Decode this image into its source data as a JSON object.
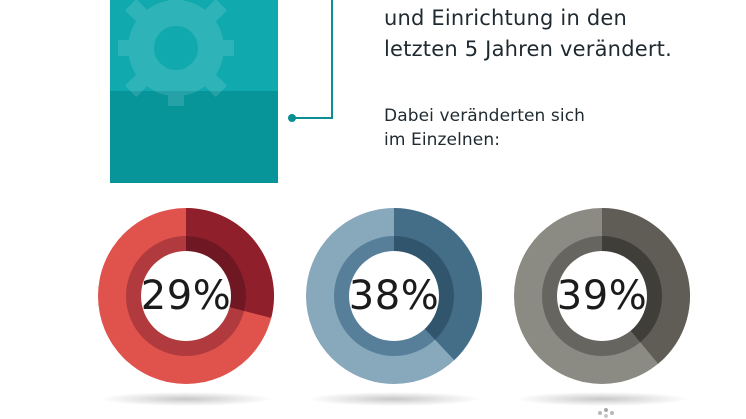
{
  "headline": {
    "line1": "und Einrichtung in den",
    "line2": "letzten 5 Jahren verändert."
  },
  "subtext": {
    "line1": "Dabei veränderten sich",
    "line2": "im Einzelnen:"
  },
  "colors": {
    "teal_light": "#0fa9ae",
    "teal_dark": "#07959a",
    "connector": "#0b8f92",
    "text": "#1f2a30"
  },
  "icons": {
    "gear": "gear-icon",
    "logo": "logo-icon"
  },
  "chart_data": {
    "type": "pie",
    "charts": [
      {
        "label": "29%",
        "value": 29,
        "colors": {
          "base": "#e0534c",
          "value": "#8f1f2a",
          "inner_base": "#b03a3d",
          "inner_value": "#6f1722",
          "hole": "#ffffff"
        }
      },
      {
        "label": "38%",
        "value": 38,
        "colors": {
          "base": "#88a8bc",
          "value": "#446e88",
          "inner_base": "#577f99",
          "inner_value": "#30556d",
          "hole": "#ffffff"
        }
      },
      {
        "label": "39%",
        "value": 39,
        "colors": {
          "base": "#8b8a83",
          "value": "#5f5d56",
          "inner_base": "#67655f",
          "inner_value": "#403e39",
          "hole": "#ffffff"
        }
      }
    ]
  }
}
